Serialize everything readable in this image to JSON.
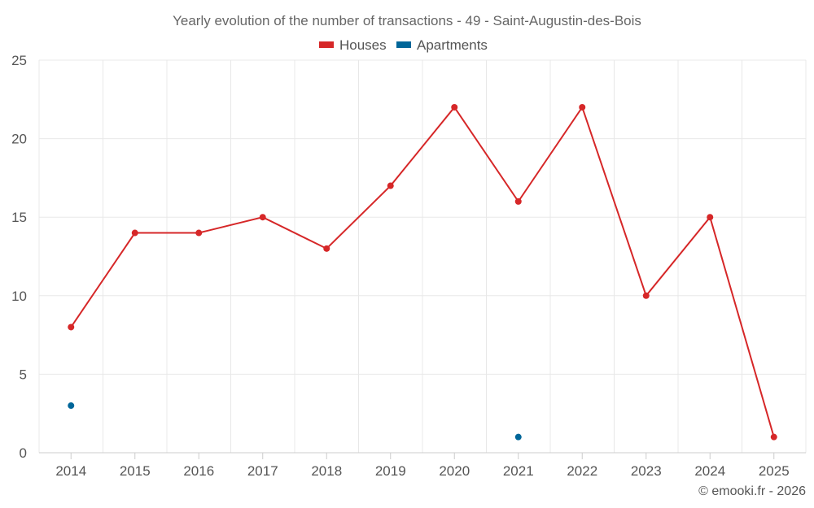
{
  "chart_data": {
    "type": "line",
    "title": "Yearly evolution of the number of transactions - 49 - Saint-Augustin-des-Bois",
    "categories": [
      "2014",
      "2015",
      "2016",
      "2017",
      "2018",
      "2019",
      "2020",
      "2021",
      "2022",
      "2023",
      "2024",
      "2025"
    ],
    "series": [
      {
        "name": "Houses",
        "color": "#d62728",
        "values": [
          8,
          14,
          14,
          15,
          13,
          17,
          22,
          16,
          22,
          10,
          15,
          1
        ]
      },
      {
        "name": "Apartments",
        "color": "#006699",
        "values": [
          3,
          null,
          null,
          null,
          null,
          null,
          null,
          1,
          null,
          null,
          null,
          null
        ]
      }
    ],
    "ylim": [
      0,
      25
    ],
    "yticks": [
      0,
      5,
      10,
      15,
      20,
      25
    ],
    "xlabel": "",
    "ylabel": "",
    "legend_position": "top-center",
    "grid": true
  },
  "footer": "© emooki.fr - 2026"
}
